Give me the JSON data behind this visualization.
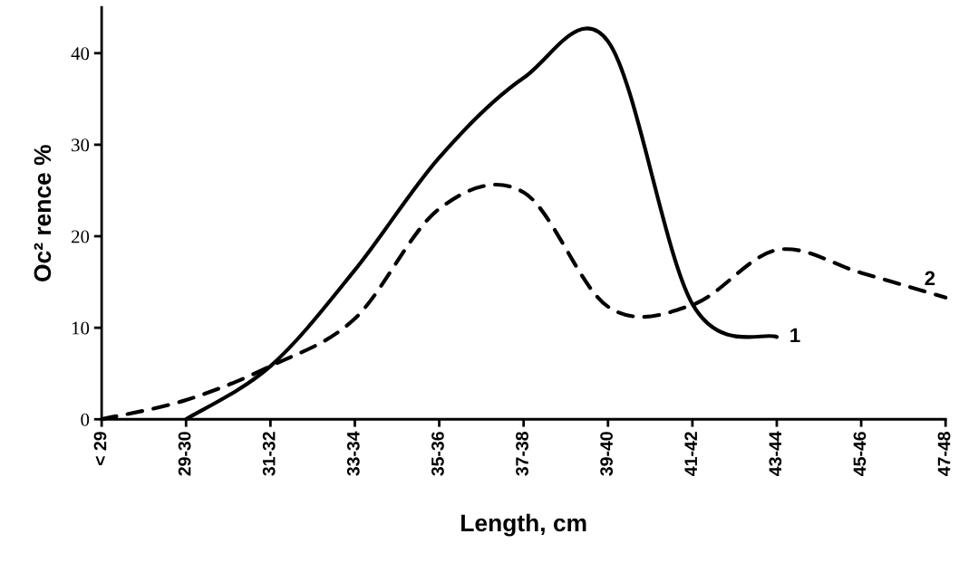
{
  "chart_data": {
    "type": "line",
    "xlabel": "Length, cm",
    "ylabel": "Oc² rence %",
    "categories": [
      "< 29",
      "29-30",
      "31-32",
      "33-34",
      "35-36",
      "37-38",
      "39-40",
      "41-42",
      "43-44",
      "45-46",
      "47-48"
    ],
    "ylim": [
      0,
      45
    ],
    "yticks": [
      0,
      10,
      20,
      30,
      40
    ],
    "grid": false,
    "legend": false,
    "series": [
      {
        "name": "1",
        "color": "#000000",
        "line_style": "solid",
        "values": [
          null,
          0,
          5.8,
          16.3,
          28.6,
          37.3,
          41.3,
          12.6,
          9.0,
          null,
          null
        ]
      },
      {
        "name": "2",
        "color": "#000000",
        "line_style": "dashed",
        "values": [
          0,
          2.1,
          5.8,
          11,
          23,
          24.8,
          12.3,
          12.5,
          18.5,
          16,
          13.3
        ]
      }
    ]
  }
}
